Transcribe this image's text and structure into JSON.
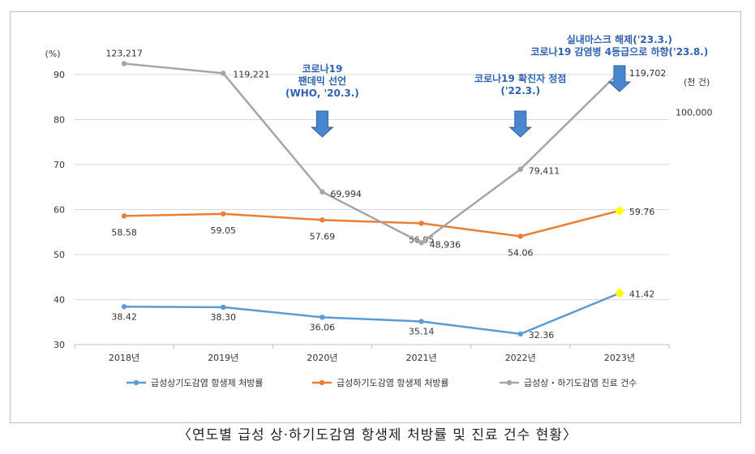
{
  "caption": "〈연도별 급성 상·하기도감염 항생제 처방률 및 진료 건수 현황〉",
  "chart_data": {
    "type": "line",
    "categories": [
      "2018년",
      "2019년",
      "2020년",
      "2021년",
      "2022년",
      "2023년"
    ],
    "y_left": {
      "unit_label": "(%)",
      "ylim": [
        30,
        90
      ],
      "ticks": [
        "30",
        "40",
        "50",
        "60",
        "70",
        "80",
        "90"
      ]
    },
    "y_right": {
      "unit_label": "(천 건)",
      "tick_label": "100,000",
      "tick_value": 100000
    },
    "grid": true,
    "legend_position": "bottom",
    "series": [
      {
        "name": "급성상기도감염 항생제 처방률",
        "color": "#5b9bd5",
        "axis": "left",
        "values": [
          38.42,
          38.3,
          36.06,
          35.14,
          32.36,
          41.42
        ],
        "labels": [
          "38.42",
          "38.30",
          "36.06",
          "35.14",
          "32.36",
          "41.42"
        ]
      },
      {
        "name": "급성하기도감염 항생제 처방률",
        "color": "#ed7d31",
        "axis": "left",
        "values": [
          58.58,
          59.05,
          57.69,
          56.95,
          54.06,
          59.76
        ],
        "labels": [
          "58.58",
          "59.05",
          "57.69",
          "56.95",
          "54.06",
          "59.76"
        ]
      },
      {
        "name": "급성상・하기도감염 진료 건수",
        "color": "#a5a5a5",
        "axis": "right",
        "values": [
          123217,
          119221,
          69994,
          48936,
          79411,
          119702
        ],
        "labels": [
          "123,217",
          "119,221",
          "69,994",
          "48,936",
          "79,411",
          "119,702"
        ]
      }
    ],
    "highlight_color": "#ffff00",
    "annotations": [
      {
        "category_index": 2,
        "lines": [
          "코로나19",
          "팬데믹 선언",
          "(WHO, '20.3.)"
        ]
      },
      {
        "category_index": 4,
        "lines": [
          "코로나19 확진자 정점",
          "('22.3.)"
        ]
      },
      {
        "category_index": 5,
        "lines": [
          "실내마스크 해제('23.3.)",
          "코로나19 감염병 4등급으로 하향('23.8.)"
        ]
      }
    ]
  }
}
